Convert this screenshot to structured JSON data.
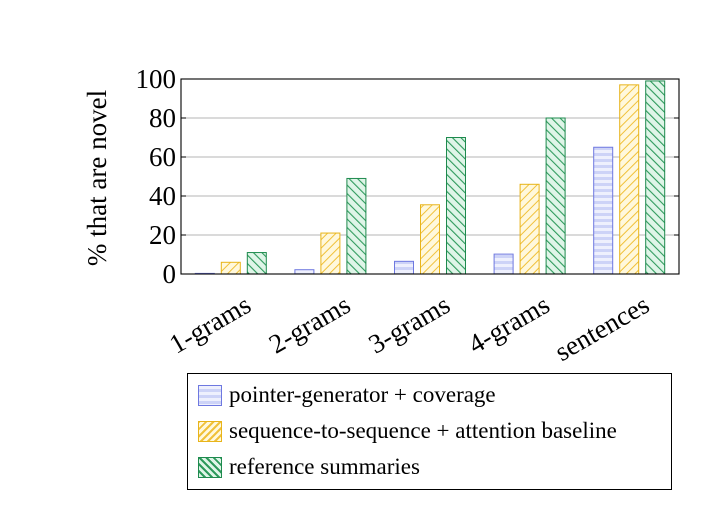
{
  "chart_data": {
    "type": "bar",
    "title": "",
    "xlabel": "",
    "ylabel": "% that are novel",
    "ylim": [
      0,
      100
    ],
    "yticks": [
      0,
      20,
      40,
      60,
      80,
      100
    ],
    "grid": true,
    "legend_position": "bottom",
    "categories": [
      "1-grams",
      "2-grams",
      "3-grams",
      "4-grams",
      "sentences"
    ],
    "series": [
      {
        "name": "pointer-generator + coverage",
        "values": [
          0.1,
          2.2,
          6.5,
          10.2,
          65
        ],
        "fill": "#dfe3fb",
        "stroke": "#6e78e0",
        "pattern": "horizontal-stripes"
      },
      {
        "name": "sequence-to-sequence + attention baseline",
        "values": [
          6,
          21,
          35.5,
          46,
          97
        ],
        "fill": "#fdf3d0",
        "stroke": "#e8b41a",
        "pattern": "north-east-lines"
      },
      {
        "name": "reference summaries",
        "values": [
          11,
          49,
          70,
          80,
          99
        ],
        "fill": "#cfeedd",
        "stroke": "#1e8a4e",
        "pattern": "north-west-lines"
      }
    ]
  }
}
